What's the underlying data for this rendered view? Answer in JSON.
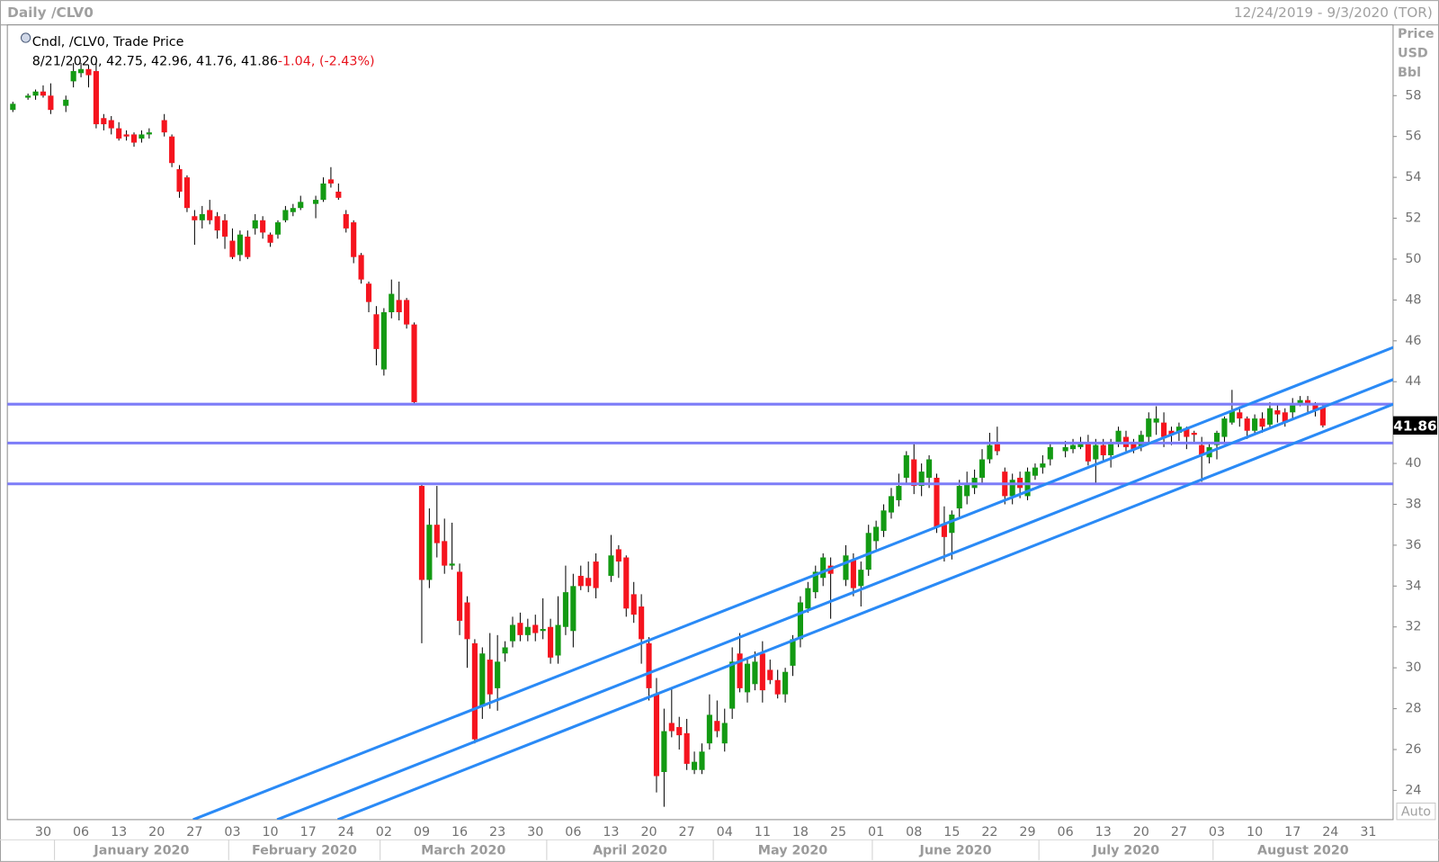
{
  "chart_data": {
    "type": "candlestick",
    "title": "Daily /CLV0",
    "range": "12/24/2019 - 9/3/2020 (TOR)",
    "legend": {
      "label": "Cndl, /CLV0, Trade Price",
      "date": "8/21/2020",
      "change": -1.04,
      "change_pct": "(-2.43%)"
    },
    "axis_header": [
      "Price",
      "USD",
      "Bbl"
    ],
    "auto_label": "Auto",
    "up_color": "#139a13",
    "down_color": "#f5141e",
    "wick_color": "#000000",
    "level_color": "#7c7cf8",
    "trendline_color": "#2a8af6",
    "ylim": [
      22.57,
      61.46
    ],
    "yticks": [
      24,
      26,
      28,
      30,
      32,
      34,
      36,
      38,
      40,
      44,
      46,
      48,
      50,
      52,
      54,
      56,
      58
    ],
    "months": [
      "January 2020",
      "February 2020",
      "March 2020",
      "April 2020",
      "May 2020",
      "June 2020",
      "July 2020",
      "August 2020"
    ],
    "categories": [
      null,
      null,
      null,
      null,
      "30",
      null,
      null,
      null,
      null,
      "06",
      null,
      null,
      null,
      null,
      "13",
      null,
      null,
      null,
      null,
      "20",
      null,
      null,
      null,
      null,
      "27",
      null,
      null,
      null,
      null,
      "03",
      null,
      null,
      null,
      null,
      "10",
      null,
      null,
      null,
      null,
      "17",
      null,
      null,
      null,
      null,
      "24",
      null,
      null,
      null,
      null,
      "02",
      null,
      null,
      null,
      null,
      "09",
      null,
      null,
      null,
      null,
      "16",
      null,
      null,
      null,
      null,
      "23",
      null,
      null,
      null,
      null,
      "30",
      null,
      null,
      null,
      null,
      "06",
      null,
      null,
      null,
      null,
      "13",
      null,
      null,
      null,
      null,
      "20",
      null,
      null,
      null,
      null,
      "27",
      null,
      null,
      null,
      null,
      "04",
      null,
      null,
      null,
      null,
      "11",
      null,
      null,
      null,
      null,
      "18",
      null,
      null,
      null,
      null,
      "25",
      null,
      null,
      null,
      null,
      "01",
      null,
      null,
      null,
      null,
      "08",
      null,
      null,
      null,
      null,
      "15",
      null,
      null,
      null,
      null,
      "22",
      null,
      null,
      null,
      null,
      "29",
      null,
      null,
      null,
      null,
      "06",
      null,
      null,
      null,
      null,
      "13",
      null,
      null,
      null,
      null,
      "20",
      null,
      null,
      null,
      null,
      "27",
      null,
      null,
      null,
      null,
      "03",
      null,
      null,
      null,
      null,
      "10",
      null,
      null,
      null,
      null,
      "17",
      null,
      null,
      null,
      null,
      "24",
      null,
      null,
      null,
      null,
      "31",
      null,
      null,
      null
    ],
    "open": [
      57.3,
      null,
      57.9,
      58.0,
      58.2,
      58.0,
      null,
      57.5,
      58.7,
      59.1,
      59.3,
      59.2,
      56.9,
      56.8,
      56.4,
      56.1,
      56.1,
      55.9,
      56.1,
      null,
      56.8,
      56.0,
      54.4,
      54.0,
      52.1,
      51.9,
      52.4,
      52.1,
      51.9,
      50.9,
      50.2,
      51.1,
      51.5,
      51.9,
      51.2,
      51.2,
      51.9,
      52.3,
      52.5,
      null,
      52.7,
      52.9,
      53.9,
      53.3,
      52.2,
      51.8,
      50.2,
      48.8,
      47.3,
      44.6,
      47.4,
      48.0,
      48.0,
      46.8,
      38.9,
      34.3,
      37.0,
      36.2,
      35.0,
      34.7,
      33.2,
      31.2,
      28.1,
      30.4,
      29.0,
      30.7,
      31.3,
      32.2,
      31.6,
      32.1,
      31.8,
      32.0,
      30.6,
      32.0,
      31.8,
      34.5,
      34.4,
      35.2,
      null,
      34.5,
      35.8,
      35.4,
      33.6,
      33.0,
      31.2,
      28.7,
      24.9,
      27.3,
      27.1,
      26.8,
      25.0,
      25.0,
      26.3,
      27.4,
      26.3,
      28.0,
      30.7,
      28.8,
      29.2,
      30.7,
      29.9,
      29.4,
      28.7,
      30.1,
      31.4,
      32.9,
      33.7,
      34.4,
      35.0,
      null,
      34.3,
      35.3,
      34.0,
      34.8,
      36.2,
      36.7,
      37.6,
      38.2,
      39.3,
      40.2,
      38.9,
      39.3,
      39.3,
      37.0,
      36.6,
      37.8,
      38.4,
      38.8,
      39.3,
      40.2,
      41.0,
      39.6,
      38.4,
      39.3,
      38.4,
      39.4,
      39.8,
      40.2,
      null,
      40.6,
      40.7,
      40.8,
      41.0,
      40.2,
      40.9,
      40.4,
      41.0,
      41.3,
      41.0,
      40.8,
      41.3,
      42.0,
      42.0,
      41.6,
      41.5,
      41.7,
      41.5,
      40.9,
      40.3,
      40.9,
      41.3,
      42.0,
      42.5,
      42.2,
      41.6,
      42.2,
      41.9,
      42.6,
      42.5,
      42.5,
      42.9,
      43.1,
      42.9,
      42.75,
      null,
      null,
      null,
      null,
      null,
      null,
      null,
      null,
      null
    ],
    "high": [
      57.7,
      null,
      58.1,
      58.3,
      58.5,
      58.6,
      null,
      58.0,
      59.6,
      59.6,
      59.5,
      59.6,
      57.1,
      57.0,
      56.7,
      56.3,
      56.2,
      56.3,
      56.4,
      null,
      57.1,
      56.1,
      54.6,
      54.1,
      52.4,
      52.6,
      52.9,
      52.3,
      52.2,
      51.5,
      51.4,
      51.4,
      52.2,
      52.1,
      51.3,
      51.9,
      52.6,
      52.7,
      53.1,
      null,
      53.1,
      54.0,
      54.5,
      53.7,
      52.4,
      51.9,
      50.3,
      48.9,
      47.7,
      47.6,
      49.0,
      48.9,
      48.1,
      46.9,
      39.0,
      37.8,
      38.9,
      37.3,
      37.1,
      35.1,
      33.5,
      31.4,
      31.0,
      31.7,
      31.6,
      31.3,
      32.5,
      32.7,
      32.4,
      32.6,
      33.4,
      32.4,
      33.5,
      35.0,
      34.6,
      35.0,
      35.2,
      35.6,
      null,
      36.5,
      36.0,
      35.5,
      34.2,
      33.6,
      31.5,
      29.5,
      28.0,
      29.0,
      27.6,
      27.5,
      25.9,
      26.3,
      28.7,
      28.4,
      28.0,
      31.0,
      31.7,
      30.5,
      30.8,
      31.3,
      30.4,
      29.9,
      30.0,
      31.6,
      33.5,
      34.2,
      35.0,
      35.6,
      35.4,
      null,
      36.0,
      35.6,
      35.2,
      37.0,
      37.2,
      38.0,
      38.8,
      39.5,
      40.6,
      41.0,
      40.0,
      40.4,
      39.5,
      37.9,
      37.7,
      39.2,
      39.6,
      39.7,
      40.7,
      41.5,
      41.8,
      39.8,
      39.5,
      39.6,
      39.8,
      40.0,
      40.4,
      41.0,
      null,
      41.1,
      41.2,
      41.3,
      41.4,
      41.2,
      41.2,
      41.2,
      41.8,
      41.6,
      41.2,
      41.6,
      42.5,
      42.8,
      42.5,
      41.8,
      42.0,
      41.8,
      41.6,
      41.3,
      41.0,
      41.6,
      42.3,
      43.6,
      42.8,
      42.3,
      42.4,
      42.5,
      43.0,
      42.9,
      42.7,
      43.2,
      43.3,
      43.3,
      43.0,
      42.96,
      null,
      null,
      null,
      null,
      null,
      null,
      null,
      null,
      null
    ],
    "low": [
      57.2,
      null,
      57.8,
      57.8,
      57.9,
      57.1,
      null,
      57.2,
      58.4,
      58.9,
      58.4,
      56.4,
      56.3,
      56.1,
      55.8,
      55.8,
      55.5,
      55.7,
      55.9,
      null,
      56.0,
      54.5,
      53.0,
      52.3,
      50.7,
      51.5,
      51.7,
      51.0,
      50.5,
      50.0,
      49.9,
      50.0,
      51.2,
      51.0,
      50.6,
      51.0,
      51.8,
      52.1,
      52.4,
      null,
      52.0,
      52.8,
      53.5,
      52.9,
      51.3,
      49.8,
      48.8,
      47.4,
      44.8,
      44.3,
      47.1,
      47.0,
      46.6,
      42.9,
      31.2,
      33.9,
      35.4,
      34.6,
      34.8,
      31.6,
      30.0,
      26.3,
      27.5,
      28.0,
      27.9,
      30.3,
      31.0,
      31.3,
      31.3,
      31.3,
      31.4,
      30.2,
      30.2,
      31.6,
      31.0,
      33.8,
      33.7,
      33.4,
      null,
      34.2,
      34.4,
      32.5,
      32.2,
      30.2,
      28.4,
      23.9,
      23.2,
      26.6,
      26.0,
      25.0,
      24.8,
      24.8,
      26.0,
      26.6,
      25.9,
      27.5,
      28.8,
      28.3,
      28.9,
      28.3,
      29.2,
      28.5,
      28.3,
      29.6,
      31.0,
      32.7,
      33.4,
      34.0,
      32.4,
      null,
      34.0,
      33.5,
      33.0,
      34.5,
      35.8,
      36.4,
      37.3,
      37.9,
      39.0,
      38.5,
      38.4,
      38.8,
      36.6,
      35.2,
      35.3,
      37.3,
      38.0,
      38.5,
      39.0,
      40.0,
      40.4,
      38.0,
      38.0,
      38.3,
      38.2,
      39.2,
      39.5,
      39.9,
      null,
      40.3,
      40.5,
      40.7,
      39.9,
      39.0,
      40.1,
      39.8,
      40.8,
      40.6,
      40.5,
      40.6,
      41.0,
      41.4,
      40.8,
      40.9,
      41.1,
      40.7,
      41.0,
      39.1,
      40.0,
      40.2,
      41.0,
      41.9,
      41.8,
      41.2,
      41.4,
      41.5,
      41.7,
      42.0,
      41.8,
      42.2,
      42.8,
      42.5,
      42.3,
      41.76,
      null,
      null,
      null,
      null,
      null,
      null,
      null,
      null,
      null
    ],
    "close": [
      57.6,
      null,
      58.0,
      58.2,
      58.0,
      57.3,
      null,
      57.8,
      59.2,
      59.3,
      59.0,
      56.6,
      56.6,
      56.4,
      55.9,
      56.0,
      55.7,
      56.1,
      56.2,
      null,
      56.2,
      54.7,
      53.3,
      52.5,
      51.9,
      52.2,
      51.9,
      51.4,
      51.1,
      50.1,
      51.2,
      50.1,
      51.9,
      51.3,
      50.8,
      51.8,
      52.4,
      52.5,
      52.8,
      null,
      52.9,
      53.7,
      53.7,
      53.0,
      51.5,
      50.1,
      49.0,
      47.9,
      45.6,
      47.4,
      48.3,
      47.4,
      46.8,
      43.0,
      34.3,
      37.0,
      36.1,
      35.0,
      35.1,
      32.3,
      31.4,
      26.5,
      30.7,
      28.7,
      30.3,
      31.0,
      32.1,
      31.6,
      32.0,
      31.7,
      31.9,
      30.5,
      32.1,
      33.7,
      34.0,
      34.0,
      34.0,
      33.9,
      null,
      35.5,
      35.2,
      32.9,
      32.6,
      31.4,
      29.0,
      24.7,
      26.9,
      26.9,
      26.7,
      25.3,
      25.4,
      25.9,
      27.7,
      26.9,
      27.3,
      30.3,
      29.0,
      30.2,
      30.3,
      28.9,
      29.4,
      28.7,
      29.8,
      31.4,
      33.2,
      33.9,
      34.7,
      35.4,
      34.6,
      null,
      35.5,
      33.9,
      34.8,
      36.6,
      36.9,
      37.7,
      38.4,
      38.9,
      40.4,
      38.9,
      39.6,
      40.2,
      36.9,
      36.4,
      37.5,
      38.9,
      39.0,
      39.3,
      40.2,
      40.9,
      40.6,
      38.4,
      39.2,
      38.8,
      39.6,
      39.8,
      40.0,
      40.8,
      null,
      40.8,
      40.9,
      41.0,
      40.1,
      40.9,
      40.4,
      41.0,
      41.6,
      40.8,
      40.7,
      41.4,
      42.2,
      42.2,
      41.3,
      41.4,
      41.8,
      41.3,
      41.4,
      40.4,
      40.8,
      41.5,
      42.2,
      42.6,
      42.2,
      41.6,
      42.2,
      41.8,
      42.7,
      42.4,
      42.0,
      42.9,
      43.1,
      42.9,
      42.6,
      41.86,
      null,
      null,
      null,
      null,
      null,
      null,
      null,
      null,
      null
    ],
    "levels": [
      42.9,
      41.0,
      39.0
    ],
    "trendlines": [
      {
        "x": [
          23.8,
          182.3
        ],
        "y": [
          22.57,
          45.68
        ]
      },
      {
        "x": [
          34.9,
          182.3
        ],
        "y": [
          22.57,
          44.11
        ]
      },
      {
        "x": [
          42.9,
          182.3
        ],
        "y": [
          22.57,
          42.9
        ]
      }
    ]
  }
}
